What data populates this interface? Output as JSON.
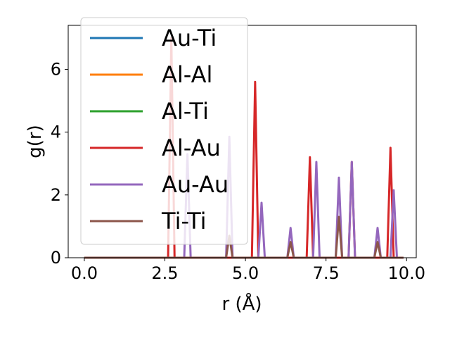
{
  "chart_data": {
    "type": "line",
    "xlabel": "r (Å)",
    "ylabel": "g(r)",
    "xlim": [
      -0.5,
      10.3
    ],
    "ylim": [
      0,
      7.4
    ],
    "xticks": [
      0.0,
      2.5,
      5.0,
      7.5,
      10.0
    ],
    "xtick_labels": [
      "0.0",
      "2.5",
      "5.0",
      "7.5",
      "10.0"
    ],
    "yticks": [
      0,
      2,
      4,
      6
    ],
    "ytick_labels": [
      "0",
      "2",
      "4",
      "6"
    ],
    "grid": false,
    "legend_position": "top-left",
    "x_range": [
      0,
      9.9
    ],
    "peak_half_width": 0.1,
    "series": [
      {
        "name": "Au-Ti",
        "color": "#1f77b4",
        "peaks": []
      },
      {
        "name": "Al-Al",
        "color": "#ff7f0e",
        "peaks": []
      },
      {
        "name": "Al-Ti",
        "color": "#2ca02c",
        "peaks": []
      },
      {
        "name": "Al-Au",
        "color": "#d62728",
        "peaks": [
          [
            2.7,
            7.0
          ],
          [
            5.3,
            5.6
          ],
          [
            7.0,
            3.2
          ],
          [
            8.3,
            3.05
          ],
          [
            9.5,
            3.5
          ]
        ]
      },
      {
        "name": "Au-Au",
        "color": "#9467bd",
        "peaks": [
          [
            3.2,
            3.3
          ],
          [
            4.5,
            3.85
          ],
          [
            5.5,
            1.75
          ],
          [
            6.4,
            0.95
          ],
          [
            7.2,
            3.05
          ],
          [
            7.9,
            2.55
          ],
          [
            8.3,
            3.05
          ],
          [
            9.1,
            0.95
          ],
          [
            9.6,
            2.15
          ]
        ]
      },
      {
        "name": "Ti-Ti",
        "color": "#8c564b",
        "peaks": [
          [
            4.5,
            0.7
          ],
          [
            6.4,
            0.5
          ],
          [
            7.9,
            1.3
          ],
          [
            9.1,
            0.5
          ]
        ]
      }
    ]
  }
}
